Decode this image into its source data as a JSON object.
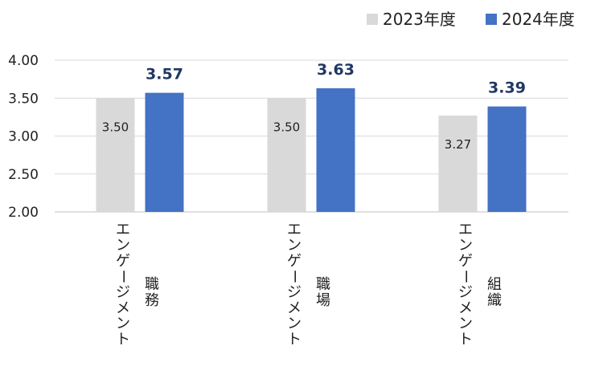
{
  "chart_data": {
    "type": "bar",
    "categories": [
      {
        "line1": "職務",
        "line2": "エンゲージメント"
      },
      {
        "line1": "職場",
        "line2": "エンゲージメント"
      },
      {
        "line1": "組織",
        "line2": "エンゲージメント"
      }
    ],
    "series": [
      {
        "name": "2023年度",
        "color": "#d9d9d9",
        "values": [
          3.5,
          3.5,
          3.27
        ],
        "labels": [
          "3.50",
          "3.50",
          "3.27"
        ]
      },
      {
        "name": "2024年度",
        "color": "#4472c4",
        "values": [
          3.57,
          3.63,
          3.39
        ],
        "labels": [
          "3.57",
          "3.63",
          "3.39"
        ]
      }
    ],
    "ylim": [
      2.0,
      4.0
    ],
    "yticks": [
      "2.00",
      "2.50",
      "3.00",
      "3.50",
      "4.00"
    ],
    "ytick_values": [
      2.0,
      2.5,
      3.0,
      3.5,
      4.0
    ],
    "grid": true,
    "legend_position": "top-right"
  }
}
